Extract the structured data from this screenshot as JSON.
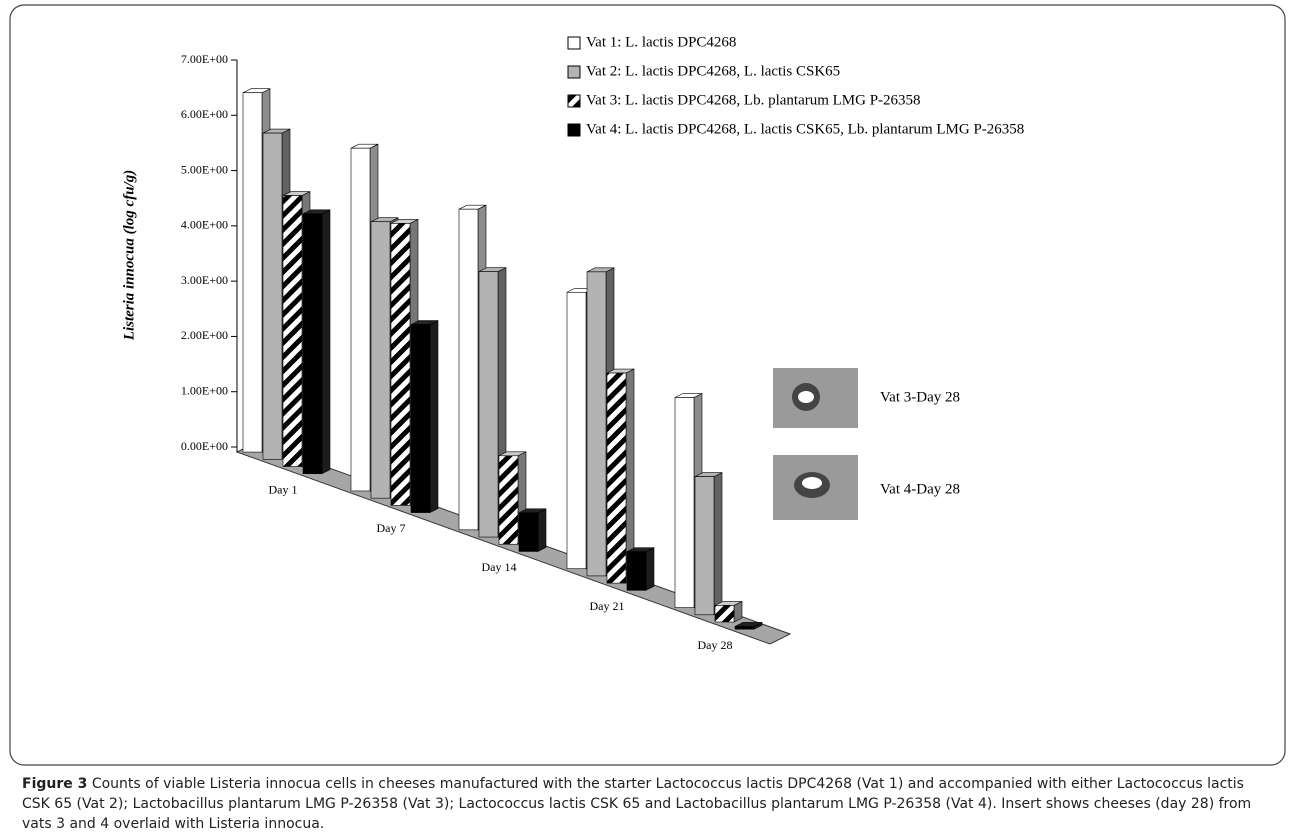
{
  "chart_data": {
    "type": "bar3d",
    "y_label": "Listeria innocua (log cfu/g)",
    "categories": [
      "Day 1",
      "Day 7",
      "Day 14",
      "Day 21",
      "Day 28"
    ],
    "series": [
      {
        "name": "Vat 1: L. lactis DPC4268",
        "color": "#ffffff",
        "values": [
          6.5,
          6.2,
          5.8,
          5.0,
          3.8
        ]
      },
      {
        "name": "Vat 2: L. lactis DPC4268, L. lactis CSK65",
        "color": "#b3b3b3",
        "values": [
          5.9,
          5.0,
          4.8,
          5.5,
          2.5
        ]
      },
      {
        "name": "Vat 3: L. lactis DPC4268, Lb. plantarum LMG P-26358",
        "color": "#000000",
        "pattern": "diagonal-stripes",
        "values": [
          4.9,
          5.1,
          1.6,
          3.8,
          0.3
        ]
      },
      {
        "name": "Vat 4: L. lactis DPC4268, L. lactis CSK65, Lb. plantarum LMG P-26358",
        "color": "#000000",
        "values": [
          4.7,
          3.4,
          0.7,
          0.7,
          0.05
        ]
      }
    ],
    "ylim": [
      0,
      7
    ],
    "yticks": [
      {
        "value": 0,
        "label": "0.00E+00"
      },
      {
        "value": 1,
        "label": "1.00E+00"
      },
      {
        "value": 2,
        "label": "2.00E+00"
      },
      {
        "value": 3,
        "label": "3.00E+00"
      },
      {
        "value": 4,
        "label": "4.00E+00"
      },
      {
        "value": 5,
        "label": "5.00E+00"
      },
      {
        "value": 6,
        "label": "6.00E+00"
      },
      {
        "value": 7,
        "label": "7.00E+00"
      }
    ],
    "legend": "top-right",
    "annotations": [
      "Vat 3-Day 28",
      "Vat 4-Day 28"
    ]
  },
  "caption_label": "Figure 3",
  "caption": "Counts of viable Listeria innocua cells in cheeses manufactured with the starter Lactococcus lactis DPC4268 (Vat 1) and accompanied with either Lactococcus lactis CSK 65 (Vat 2); Lactobacillus plantarum LMG P-26358 (Vat 3); Lactococcus lactis CSK 65 and Lactobacillus plantarum LMG P-26358 (Vat 4). Insert shows cheeses (day 28) from vats 3 and 4 overlaid with Listeria innocua."
}
